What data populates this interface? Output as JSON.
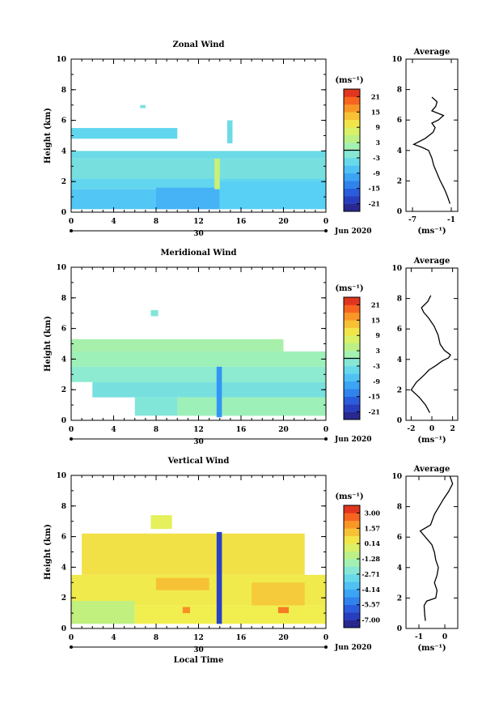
{
  "figure": {
    "x_axis_label": "Local Time",
    "month_label": "Jun 2020",
    "day_label": "30",
    "y_axis_label": "Height (km)",
    "unit_label": "(ms⁻¹)",
    "profile_title": "Average"
  },
  "chart_data": [
    {
      "type": "heatmap",
      "title": "Zonal Wind",
      "ylabel": "Height (km)",
      "xlabel": "",
      "x_ticks": [
        "0",
        "4",
        "8",
        "12",
        "16",
        "20",
        "0"
      ],
      "y_ticks": [
        "0",
        "2",
        "4",
        "6",
        "8",
        "10"
      ],
      "xlim": [
        0,
        24
      ],
      "ylim": [
        0,
        10
      ],
      "colorbar": {
        "unit": "(ms⁻¹)",
        "ticks": [
          "21",
          "15",
          "9",
          "3",
          "-3",
          "-9",
          "-15",
          "-21"
        ],
        "range": [
          -24,
          24
        ],
        "contour_level": 0
      },
      "cells": [
        {
          "x": [
            0,
            10
          ],
          "y": [
            4.8,
            5.5
          ],
          "value": -5
        },
        {
          "x": [
            0,
            14
          ],
          "y": [
            0.2,
            1.5
          ],
          "value": -7
        },
        {
          "x": [
            0,
            24
          ],
          "y": [
            1.5,
            2.2
          ],
          "value": -5
        },
        {
          "x": [
            0,
            24
          ],
          "y": [
            2.2,
            3.5
          ],
          "value": -3
        },
        {
          "x": [
            0,
            24
          ],
          "y": [
            3.5,
            4.0
          ],
          "value": -4
        },
        {
          "x": [
            8,
            14
          ],
          "y": [
            0.2,
            1.6
          ],
          "value": -9
        },
        {
          "x": [
            14,
            24
          ],
          "y": [
            0.2,
            2.0
          ],
          "value": -6
        },
        {
          "x": [
            13.5,
            14
          ],
          "y": [
            1.5,
            3.5
          ],
          "value": 6
        },
        {
          "x": [
            14.7,
            15.2
          ],
          "y": [
            4.5,
            6.0
          ],
          "value": -4
        },
        {
          "x": [
            6.5,
            7.0
          ],
          "y": [
            6.8,
            7.0
          ],
          "value": -3
        }
      ],
      "profile": {
        "title": "Average",
        "xlabel": "(ms⁻¹)",
        "x_ticks": [
          "-7",
          "-1"
        ],
        "y_ticks": [
          "0",
          "2",
          "4",
          "6",
          "8",
          "10"
        ],
        "xlim": [
          -8,
          0
        ],
        "ylim": [
          0,
          10
        ],
        "x": [
          -1.2,
          -1.6,
          -2.1,
          -2.7,
          -3.2,
          -3.7,
          -4.0,
          -4.5,
          -5.5,
          -6.8,
          -5.0,
          -3.8,
          -3.5,
          -4.0,
          -3.0,
          -2.2,
          -4.0,
          -3.4,
          -3.2,
          -4.0
        ],
        "y": [
          0.5,
          1.0,
          1.5,
          2.0,
          2.5,
          3.0,
          3.5,
          4.0,
          4.2,
          4.4,
          4.8,
          5.2,
          5.5,
          5.8,
          6.0,
          6.3,
          6.6,
          6.9,
          7.2,
          7.5
        ]
      }
    },
    {
      "type": "heatmap",
      "title": "Meridional Wind",
      "ylabel": "Height (km)",
      "xlabel": "",
      "x_ticks": [
        "0",
        "4",
        "8",
        "12",
        "16",
        "20",
        "0"
      ],
      "y_ticks": [
        "0",
        "2",
        "4",
        "6",
        "8",
        "10"
      ],
      "xlim": [
        0,
        24
      ],
      "ylim": [
        0,
        10
      ],
      "colorbar": {
        "unit": "(ms⁻¹)",
        "ticks": [
          "21",
          "15",
          "9",
          "3",
          "-3",
          "-9",
          "-15",
          "-21"
        ],
        "range": [
          -24,
          24
        ],
        "contour_level": 0
      },
      "cells": [
        {
          "x": [
            0,
            20
          ],
          "y": [
            4.5,
            5.3
          ],
          "value": 2
        },
        {
          "x": [
            0,
            24
          ],
          "y": [
            3.5,
            4.5
          ],
          "value": 1
        },
        {
          "x": [
            0,
            24
          ],
          "y": [
            2.5,
            3.5
          ],
          "value": -1
        },
        {
          "x": [
            2,
            24
          ],
          "y": [
            1.5,
            2.5
          ],
          "value": -3
        },
        {
          "x": [
            6,
            24
          ],
          "y": [
            0.3,
            1.5
          ],
          "value": -2
        },
        {
          "x": [
            10,
            24
          ],
          "y": [
            0.3,
            1.5
          ],
          "value": 1
        },
        {
          "x": [
            13.7,
            14.2
          ],
          "y": [
            0.2,
            3.5
          ],
          "value": -12
        },
        {
          "x": [
            7.5,
            8.2
          ],
          "y": [
            6.8,
            7.2
          ],
          "value": -2
        }
      ],
      "profile": {
        "title": "Average",
        "xlabel": "(ms⁻¹)",
        "x_ticks": [
          "-2",
          "0",
          "2"
        ],
        "y_ticks": [
          "0",
          "2",
          "4",
          "6",
          "8",
          "10"
        ],
        "xlim": [
          -2.5,
          2.5
        ],
        "ylim": [
          0,
          10
        ],
        "x": [
          -0.2,
          -0.6,
          -1.2,
          -2.0,
          -1.5,
          -0.7,
          -0.3,
          0.4,
          1.0,
          1.6,
          1.8,
          1.2,
          0.8,
          0.6,
          0.2,
          -0.3,
          -0.8,
          -1.0,
          -0.4,
          -0.1
        ],
        "y": [
          0.5,
          1.0,
          1.5,
          2.0,
          2.5,
          3.0,
          3.3,
          3.6,
          3.9,
          4.1,
          4.3,
          4.6,
          5.0,
          5.6,
          6.2,
          6.7,
          7.1,
          7.4,
          7.8,
          8.2
        ]
      }
    },
    {
      "type": "heatmap",
      "title": "Vertical Wind",
      "ylabel": "Height (km)",
      "xlabel": "Local Time",
      "x_ticks": [
        "0",
        "4",
        "8",
        "12",
        "16",
        "20",
        "0"
      ],
      "y_ticks": [
        "0",
        "2",
        "4",
        "6",
        "8",
        "10"
      ],
      "xlim": [
        0,
        24
      ],
      "ylim": [
        0,
        10
      ],
      "colorbar": {
        "unit": "(ms⁻¹)",
        "ticks": [
          "3.00",
          "1.57",
          "0.14",
          "-1.28",
          "-2.71",
          "-4.14",
          "-5.57",
          "-7.00"
        ],
        "range": [
          -7.7,
          3.7
        ],
        "contour_level": null
      },
      "cells": [
        {
          "x": [
            1,
            22
          ],
          "y": [
            3.5,
            6.2
          ],
          "value": 0.6
        },
        {
          "x": [
            0,
            24
          ],
          "y": [
            1.5,
            3.5
          ],
          "value": 0.4
        },
        {
          "x": [
            0,
            6
          ],
          "y": [
            0.3,
            1.8
          ],
          "value": -0.8
        },
        {
          "x": [
            6,
            24
          ],
          "y": [
            0.3,
            1.5
          ],
          "value": 0.3
        },
        {
          "x": [
            8,
            13
          ],
          "y": [
            2.5,
            3.3
          ],
          "value": 1.2
        },
        {
          "x": [
            17,
            22
          ],
          "y": [
            1.5,
            3.0
          ],
          "value": 1.0
        },
        {
          "x": [
            10.5,
            11.2
          ],
          "y": [
            1.0,
            1.4
          ],
          "value": 2.0
        },
        {
          "x": [
            19.5,
            20.5
          ],
          "y": [
            1.0,
            1.4
          ],
          "value": 2.3
        },
        {
          "x": [
            13.7,
            14.2
          ],
          "y": [
            0.3,
            6.3
          ],
          "value": -6.5
        },
        {
          "x": [
            7.5,
            9.5
          ],
          "y": [
            6.5,
            7.4
          ],
          "value": 0.0
        }
      ],
      "profile": {
        "title": "Average",
        "xlabel": "(ms⁻¹)",
        "x_ticks": [
          "-1",
          "0"
        ],
        "y_ticks": [
          "0",
          "2",
          "4",
          "6",
          "8",
          "10"
        ],
        "xlim": [
          -1.5,
          0.5
        ],
        "ylim": [
          0,
          10
        ],
        "x": [
          -0.75,
          -0.78,
          -0.8,
          -0.7,
          -0.35,
          -0.3,
          -0.4,
          -0.3,
          -0.25,
          -0.35,
          -0.4,
          -0.5,
          -0.75,
          -0.95,
          -0.55,
          -0.4,
          -0.05,
          0.15,
          0.3,
          0.2
        ],
        "y": [
          0.5,
          1.0,
          1.5,
          1.8,
          2.0,
          2.5,
          3.0,
          3.5,
          4.0,
          4.5,
          5.0,
          5.5,
          6.0,
          6.4,
          6.8,
          7.5,
          8.5,
          9.0,
          9.5,
          10.0
        ]
      }
    }
  ]
}
